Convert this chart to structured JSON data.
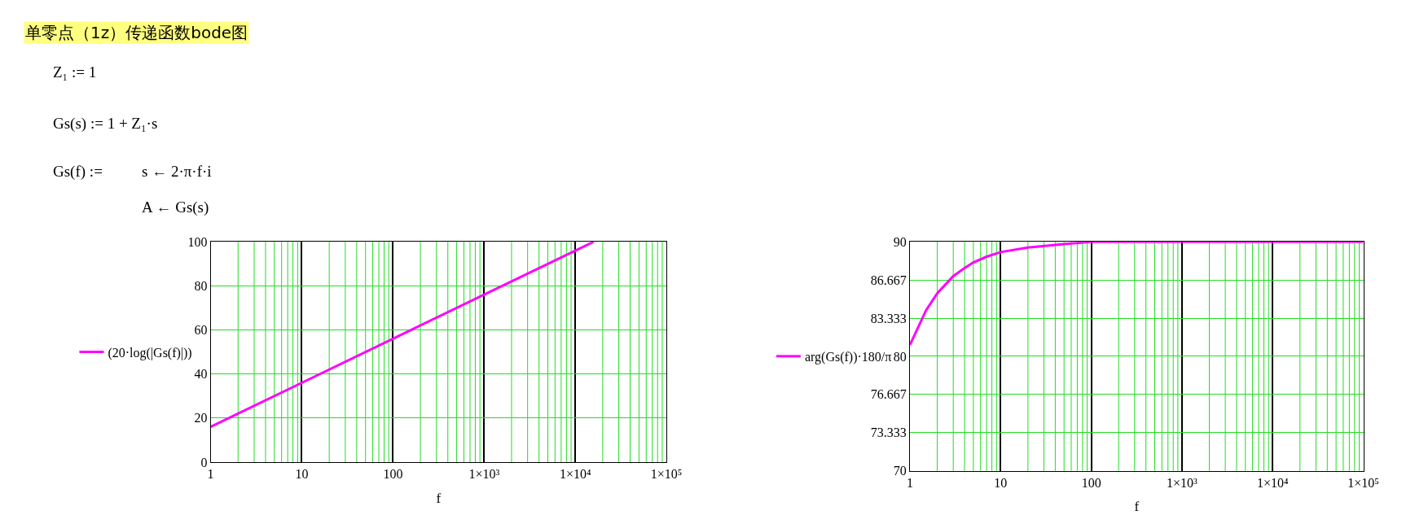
{
  "chart_data": [
    {
      "type": "line",
      "title": "单零点（1z）传递函数bode图",
      "annotations": [
        "Z₁ := 1",
        "Gs(s) := 1 + Z₁·s",
        "Gs(f) :=",
        "s ← 2·π·f·i",
        "A ← Gs(s)"
      ],
      "xlabel": "f",
      "log": "x",
      "grid": "xy",
      "legend": "left",
      "xlim": [
        1,
        100000
      ],
      "xticks": [
        1,
        10,
        100,
        {
          "value": 1000,
          "label": "1×10³"
        },
        {
          "value": 10000,
          "label": "1×10⁴"
        },
        {
          "value": 100000,
          "label": "1×10⁵"
        }
      ],
      "ylim": [
        0,
        100
      ],
      "yticks": [
        0,
        20,
        40,
        60,
        80,
        100
      ],
      "series": [
        {
          "name": "(20·log(|Gs(f)|))",
          "color": "#ff00ff",
          "x": [
            1,
            10,
            100,
            1000,
            10000,
            15915
          ],
          "values": [
            16,
            36,
            56,
            76,
            96,
            100
          ]
        }
      ]
    },
    {
      "type": "line",
      "xlabel": "f",
      "log": "x",
      "grid": "xy",
      "legend": "left",
      "xlim": [
        1,
        100000
      ],
      "xticks": [
        1,
        10,
        100,
        {
          "value": 1000,
          "label": "1×10³"
        },
        {
          "value": 10000,
          "label": "1×10⁴"
        },
        {
          "value": 100000,
          "label": "1×10⁵"
        }
      ],
      "ylim": [
        70,
        90
      ],
      "yticks": [
        70,
        73.333,
        76.667,
        80,
        83.333,
        86.667,
        90
      ],
      "series": [
        {
          "name": "arg(Gs(f))·180/π",
          "color": "#ff00ff",
          "x": [
            1,
            1.5,
            2,
            3,
            4,
            5,
            7,
            10,
            20,
            50,
            100,
            1000,
            10000,
            100000
          ],
          "values": [
            81,
            84,
            85.5,
            87,
            87.7,
            88.2,
            88.7,
            89.1,
            89.5,
            89.8,
            90,
            90,
            90,
            90
          ]
        }
      ]
    }
  ]
}
